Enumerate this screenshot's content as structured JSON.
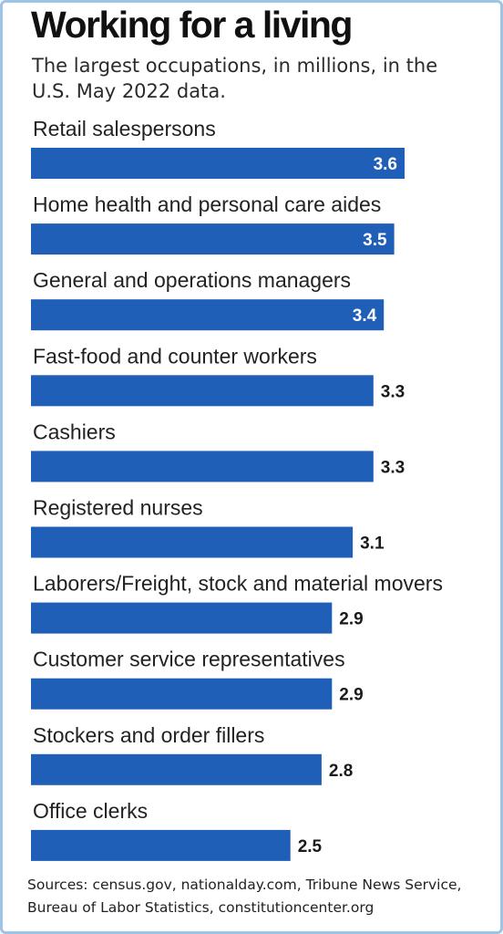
{
  "header": {
    "title": "Working for a living",
    "subtitle": "The largest occupations, in millions, in the U.S. May 2022 data."
  },
  "footer": {
    "source": "Sources: census.gov, nationalday.com, Tribune News Service, Bureau of Labor Statistics, constitutioncenter.org"
  },
  "colors": {
    "bar": "#1f5fb8",
    "value_inside": "#ffffff",
    "value_outside": "#1a1a1a"
  },
  "chart_data": {
    "type": "bar",
    "orientation": "horizontal",
    "title": "Working for a living",
    "subtitle": "The largest occupations, in millions, in the U.S. May 2022 data.",
    "categories": [
      "Retail salespersons",
      "Home health and personal care aides",
      "General and operations managers",
      "Fast-food and counter workers",
      "Cashiers",
      "Registered nurses",
      "Laborers/Freight, stock and material movers",
      "Customer service representatives",
      "Stockers and order fillers",
      "Office clerks"
    ],
    "values": [
      3.6,
      3.5,
      3.4,
      3.3,
      3.3,
      3.1,
      2.9,
      2.9,
      2.8,
      2.5
    ],
    "value_labels": [
      "3.6",
      "3.5",
      "3.4",
      "3.3",
      "3.3",
      "3.1",
      "2.9",
      "2.9",
      "2.8",
      "2.5"
    ],
    "xlabel": "",
    "ylabel": "",
    "xlim": [
      0,
      3.6
    ],
    "grid": false,
    "legend": "none"
  }
}
